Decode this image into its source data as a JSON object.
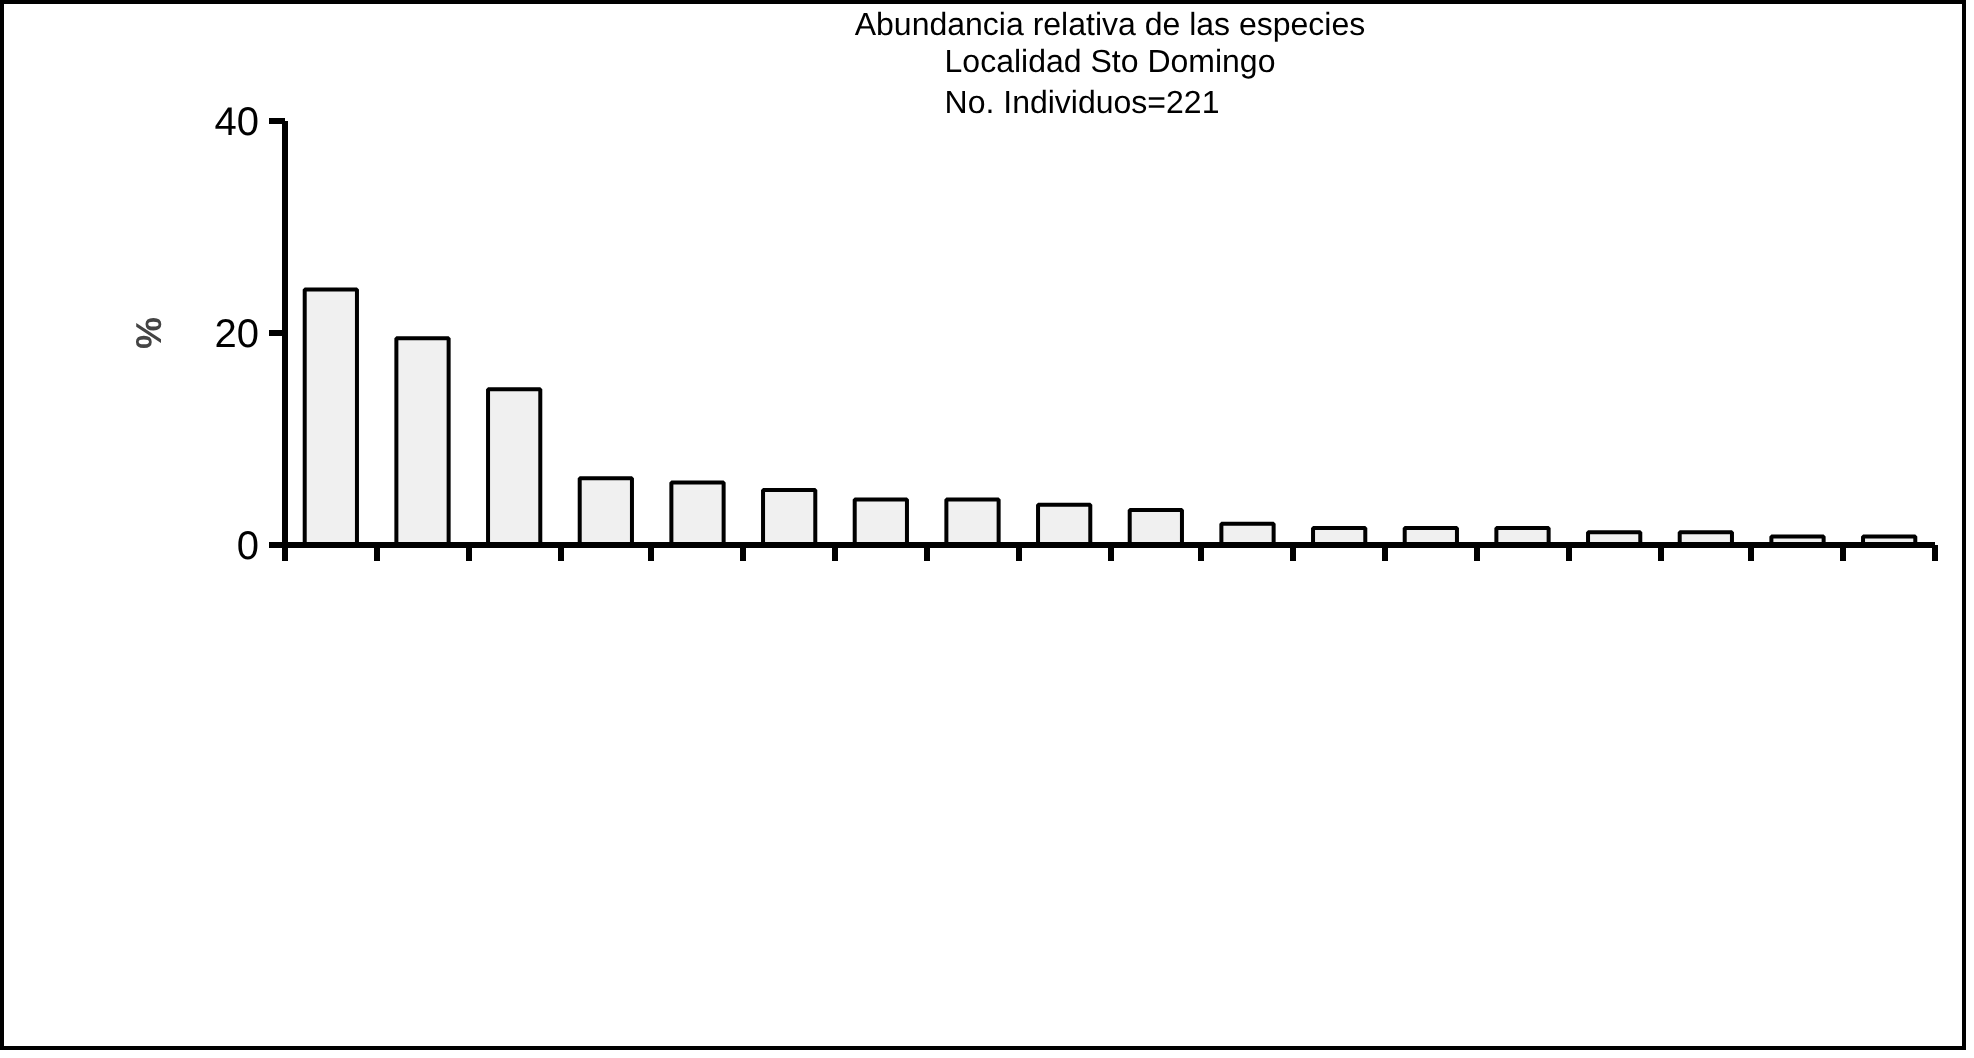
{
  "chart_data": {
    "type": "bar",
    "title": "Abundancia relativa de las especies",
    "subtitle": "Localidad Sto Domingo\nNo. Individuos=221",
    "ylabel": "%",
    "categories": [
      null,
      null,
      null,
      null,
      null,
      null,
      null,
      null,
      null,
      null,
      null,
      null,
      null,
      null,
      null,
      null,
      null,
      null
    ],
    "values": [
      24.1,
      19.5,
      14.7,
      6.3,
      5.9,
      5.2,
      4.3,
      4.3,
      3.8,
      3.3,
      2.0,
      1.6,
      1.6,
      1.6,
      1.2,
      1.2,
      0.8,
      0.8
    ],
    "color": "#f0f0f0",
    "ylim": [
      0,
      40
    ],
    "yticks": [
      0,
      20,
      40
    ],
    "grid": false,
    "tick_labels": "y"
  }
}
